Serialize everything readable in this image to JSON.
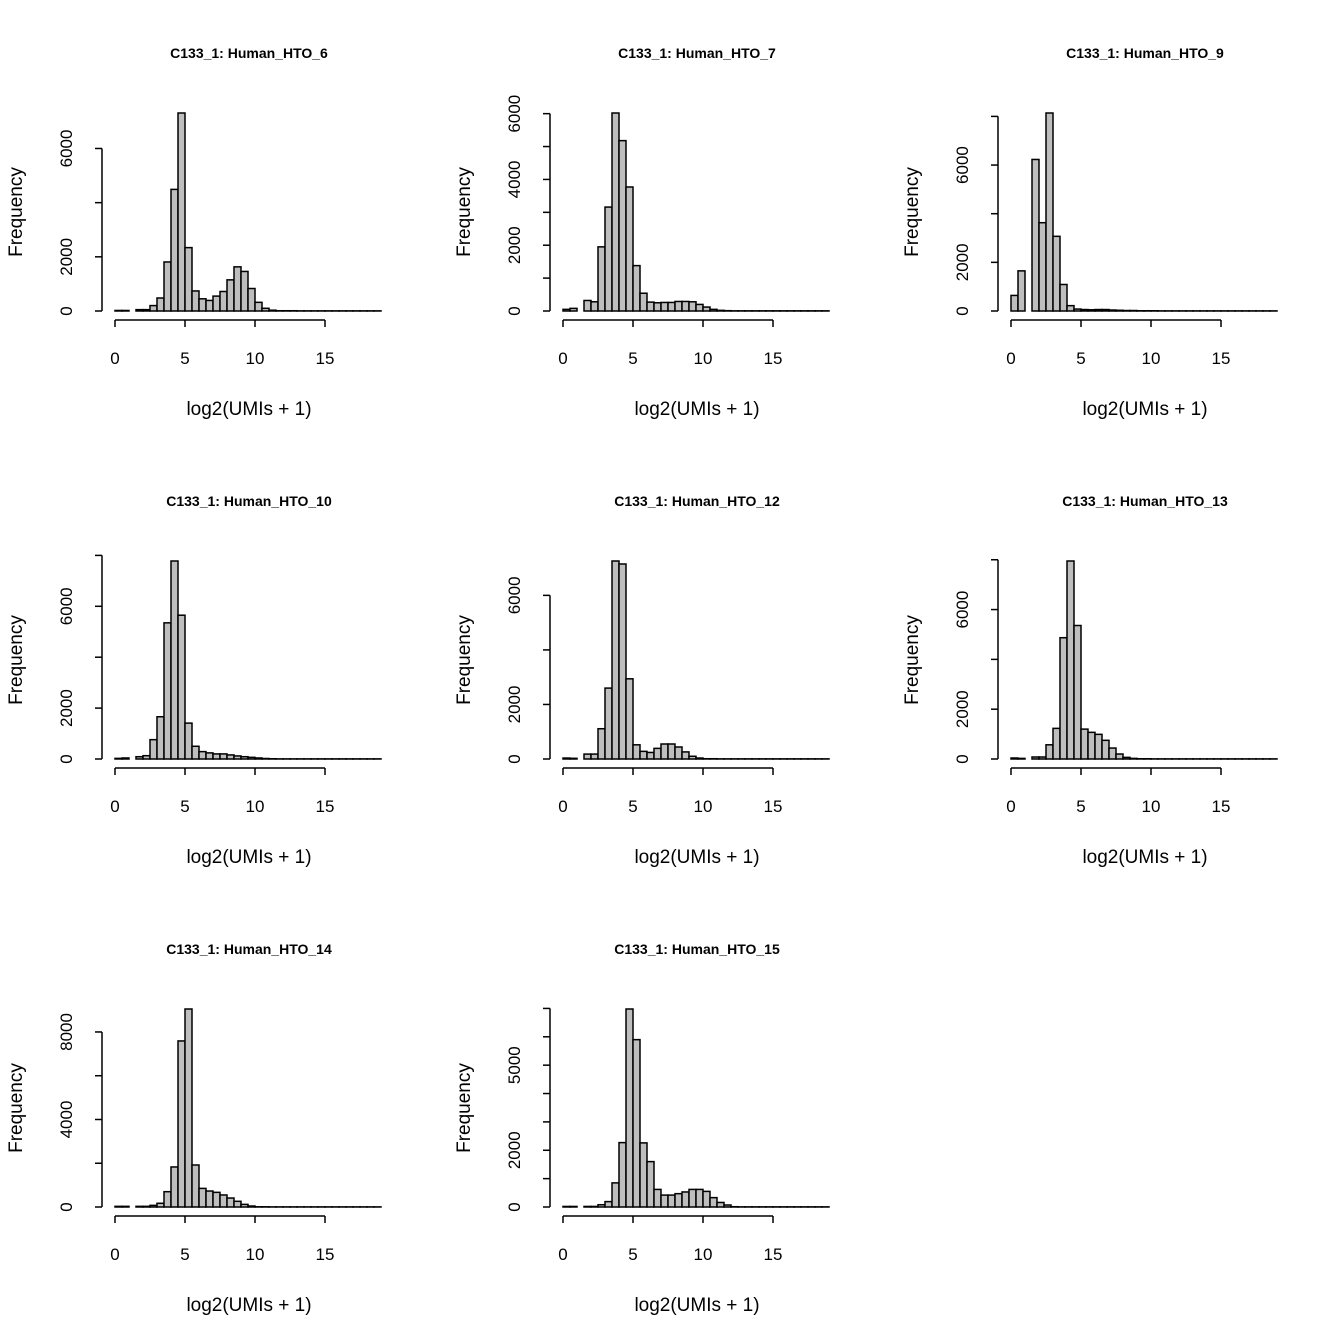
{
  "chart_data": [
    {
      "type": "bar",
      "title": "C133_1: Human_HTO_6",
      "xlabel": "log2(UMIs + 1)",
      "ylabel": "Frequency",
      "bin_width": 0.5,
      "x_start": 0,
      "xticks": [
        0,
        5,
        10,
        15
      ],
      "yticks": [
        0,
        2000,
        4000,
        6000
      ],
      "ytick_labels": [
        "0",
        "2000",
        "",
        "6000"
      ],
      "values": [
        20,
        20,
        0,
        50,
        50,
        200,
        480,
        1810,
        4490,
        7310,
        2340,
        740,
        450,
        390,
        550,
        720,
        1150,
        1630,
        1460,
        830,
        320,
        100,
        30,
        10,
        10,
        10,
        5,
        5,
        5,
        5,
        5,
        5,
        5,
        5,
        5,
        5,
        5,
        5
      ]
    },
    {
      "type": "bar",
      "title": "C133_1: Human_HTO_7",
      "xlabel": "log2(UMIs + 1)",
      "ylabel": "Frequency",
      "bin_width": 0.5,
      "x_start": 0,
      "xticks": [
        0,
        5,
        10,
        15
      ],
      "yticks": [
        0,
        1000,
        2000,
        3000,
        4000,
        5000,
        6000
      ],
      "ytick_labels": [
        "0",
        "",
        "2000",
        "",
        "4000",
        "",
        "6000"
      ],
      "values": [
        50,
        80,
        0,
        320,
        280,
        1950,
        3160,
        6020,
        5180,
        3770,
        1380,
        540,
        270,
        250,
        260,
        260,
        290,
        290,
        280,
        200,
        120,
        50,
        20,
        10,
        5,
        5,
        5,
        5,
        5,
        5,
        5,
        5,
        5,
        5,
        5,
        5,
        5,
        5
      ]
    },
    {
      "type": "bar",
      "title": "C133_1: Human_HTO_9",
      "xlabel": "log2(UMIs + 1)",
      "ylabel": "Frequency",
      "bin_width": 0.5,
      "x_start": 0,
      "xticks": [
        0,
        5,
        10,
        15
      ],
      "yticks": [
        0,
        2000,
        4000,
        6000,
        8000
      ],
      "ytick_labels": [
        "0",
        "2000",
        "",
        "6000",
        ""
      ],
      "values": [
        640,
        1650,
        0,
        6230,
        3630,
        8140,
        3070,
        1090,
        220,
        80,
        60,
        50,
        60,
        60,
        40,
        30,
        20,
        20,
        10,
        10,
        10,
        5,
        5,
        5,
        5,
        5,
        5,
        5,
        5,
        5,
        5,
        5,
        5,
        5,
        5,
        5,
        5,
        5
      ]
    },
    {
      "type": "bar",
      "title": "C133_1: Human_HTO_10",
      "xlabel": "log2(UMIs + 1)",
      "ylabel": "Frequency",
      "bin_width": 0.5,
      "x_start": 0,
      "xticks": [
        0,
        5,
        10,
        15
      ],
      "yticks": [
        0,
        2000,
        4000,
        6000,
        8000
      ],
      "ytick_labels": [
        "0",
        "2000",
        "",
        "6000",
        ""
      ],
      "values": [
        25,
        40,
        0,
        90,
        130,
        760,
        1660,
        5350,
        7780,
        5650,
        1410,
        500,
        290,
        240,
        200,
        200,
        160,
        120,
        90,
        65,
        40,
        20,
        10,
        5,
        5,
        5,
        5,
        5,
        5,
        5,
        5,
        5,
        5,
        5,
        5,
        5,
        5,
        5
      ]
    },
    {
      "type": "bar",
      "title": "C133_1: Human_HTO_12",
      "xlabel": "log2(UMIs + 1)",
      "ylabel": "Frequency",
      "bin_width": 0.5,
      "x_start": 0,
      "xticks": [
        0,
        5,
        10,
        15
      ],
      "yticks": [
        0,
        2000,
        4000,
        6000
      ],
      "ytick_labels": [
        "0",
        "2000",
        "",
        "6000"
      ],
      "values": [
        35,
        25,
        0,
        180,
        180,
        1110,
        2600,
        7260,
        7150,
        2940,
        520,
        280,
        240,
        390,
        550,
        550,
        440,
        260,
        100,
        35,
        10,
        10,
        5,
        5,
        5,
        5,
        5,
        5,
        5,
        5,
        5,
        5,
        5,
        5,
        5,
        5,
        5,
        5
      ]
    },
    {
      "type": "bar",
      "title": "C133_1: Human_HTO_13",
      "xlabel": "log2(UMIs + 1)",
      "ylabel": "Frequency",
      "bin_width": 0.5,
      "x_start": 0,
      "xticks": [
        0,
        5,
        10,
        15
      ],
      "yticks": [
        0,
        2000,
        4000,
        6000,
        8000
      ],
      "ytick_labels": [
        "0",
        "2000",
        "",
        "6000",
        ""
      ],
      "values": [
        40,
        25,
        0,
        80,
        80,
        570,
        1230,
        4870,
        7950,
        5360,
        1200,
        1070,
        990,
        750,
        440,
        200,
        65,
        25,
        10,
        10,
        5,
        5,
        5,
        5,
        5,
        5,
        5,
        5,
        5,
        5,
        5,
        5,
        5,
        5,
        5,
        5,
        5,
        5
      ]
    },
    {
      "type": "bar",
      "title": "C133_1: Human_HTO_14",
      "xlabel": "log2(UMIs + 1)",
      "ylabel": "Frequency",
      "bin_width": 0.5,
      "x_start": 0,
      "xticks": [
        0,
        5,
        10,
        15
      ],
      "yticks": [
        0,
        2000,
        4000,
        6000,
        8000
      ],
      "ytick_labels": [
        "0",
        "",
        "4000",
        "",
        "8000"
      ],
      "values": [
        30,
        30,
        0,
        30,
        30,
        75,
        170,
        700,
        1830,
        7590,
        9050,
        1920,
        850,
        730,
        670,
        550,
        410,
        260,
        120,
        45,
        10,
        10,
        5,
        5,
        5,
        5,
        5,
        5,
        5,
        5,
        5,
        5,
        5,
        5,
        5,
        5,
        5,
        5
      ]
    },
    {
      "type": "bar",
      "title": "C133_1: Human_HTO_15",
      "xlabel": "log2(UMIs + 1)",
      "ylabel": "Frequency",
      "bin_width": 0.5,
      "x_start": 0,
      "xticks": [
        0,
        5,
        10,
        15
      ],
      "yticks": [
        0,
        1000,
        2000,
        3000,
        4000,
        5000,
        6000,
        7000
      ],
      "ytick_labels": [
        "0",
        "",
        "2000",
        "",
        "",
        "5000",
        "",
        ""
      ],
      "values": [
        20,
        20,
        0,
        20,
        20,
        80,
        190,
        850,
        2270,
        6980,
        5900,
        2260,
        1600,
        620,
        420,
        420,
        470,
        530,
        620,
        620,
        550,
        330,
        160,
        70,
        10,
        5,
        5,
        5,
        5,
        5,
        5,
        5,
        5,
        5,
        5,
        5,
        5,
        5
      ]
    }
  ]
}
